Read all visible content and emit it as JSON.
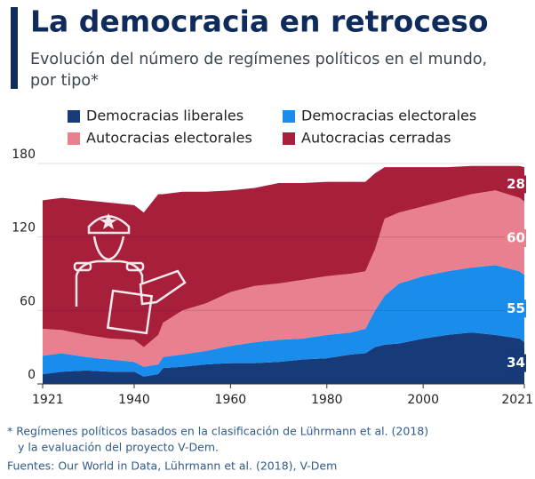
{
  "chart_data": {
    "type": "stacked_area",
    "title": "La democracia en retroceso",
    "subtitle": [
      "Evolución del número de regímenes políticos en el mundo,",
      "por tipo*"
    ],
    "x": [
      1921,
      1925,
      1930,
      1935,
      1940,
      1942,
      1945,
      1946,
      1950,
      1955,
      1960,
      1965,
      1970,
      1975,
      1980,
      1985,
      1988,
      1990,
      1992,
      1995,
      2000,
      2005,
      2010,
      2015,
      2020,
      2021
    ],
    "series": [
      {
        "name": "Democracias liberales",
        "color": "#173a78",
        "values": [
          8,
          10,
          11,
          10,
          10,
          6,
          8,
          13,
          14,
          16,
          17,
          17,
          18,
          20,
          21,
          24,
          25,
          30,
          32,
          33,
          37,
          40,
          42,
          40,
          37,
          34
        ]
      },
      {
        "name": "Democracias electorales",
        "color": "#1a8cec",
        "values": [
          15,
          15,
          11,
          10,
          8,
          8,
          8,
          9,
          10,
          11,
          14,
          17,
          18,
          17,
          19,
          18,
          20,
          30,
          40,
          49,
          51,
          52,
          53,
          57,
          55,
          55
        ]
      },
      {
        "name": "Autocracias electorales",
        "color": "#e8808f",
        "values": [
          22,
          19,
          18,
          17,
          18,
          16,
          24,
          28,
          36,
          39,
          44,
          46,
          46,
          48,
          48,
          48,
          47,
          50,
          63,
          58,
          57,
          58,
          60,
          61,
          60,
          60
        ]
      },
      {
        "name": "Autocracias cerradas",
        "color": "#a81f3c",
        "values": [
          105,
          108,
          110,
          111,
          110,
          110,
          115,
          105,
          97,
          91,
          83,
          80,
          82,
          79,
          77,
          75,
          73,
          62,
          42,
          37,
          32,
          27,
          23,
          20,
          26,
          28
        ]
      }
    ],
    "xlim": [
      1921,
      2021
    ],
    "xticks": [
      1921,
      1940,
      1960,
      1980,
      2000,
      2021
    ],
    "ylim": [
      0,
      180
    ],
    "yticks": [
      0,
      60,
      120,
      180
    ],
    "grid": true,
    "legend": "top",
    "footnote": [
      "* Regímenes políticos basados en la clasificación de Lührmann et al. (2018)",
      "y la evaluación del proyecto V-Dem."
    ],
    "source": "Fuentes: Our World in Data, Lührmann et al. (2018), V-Dem"
  }
}
